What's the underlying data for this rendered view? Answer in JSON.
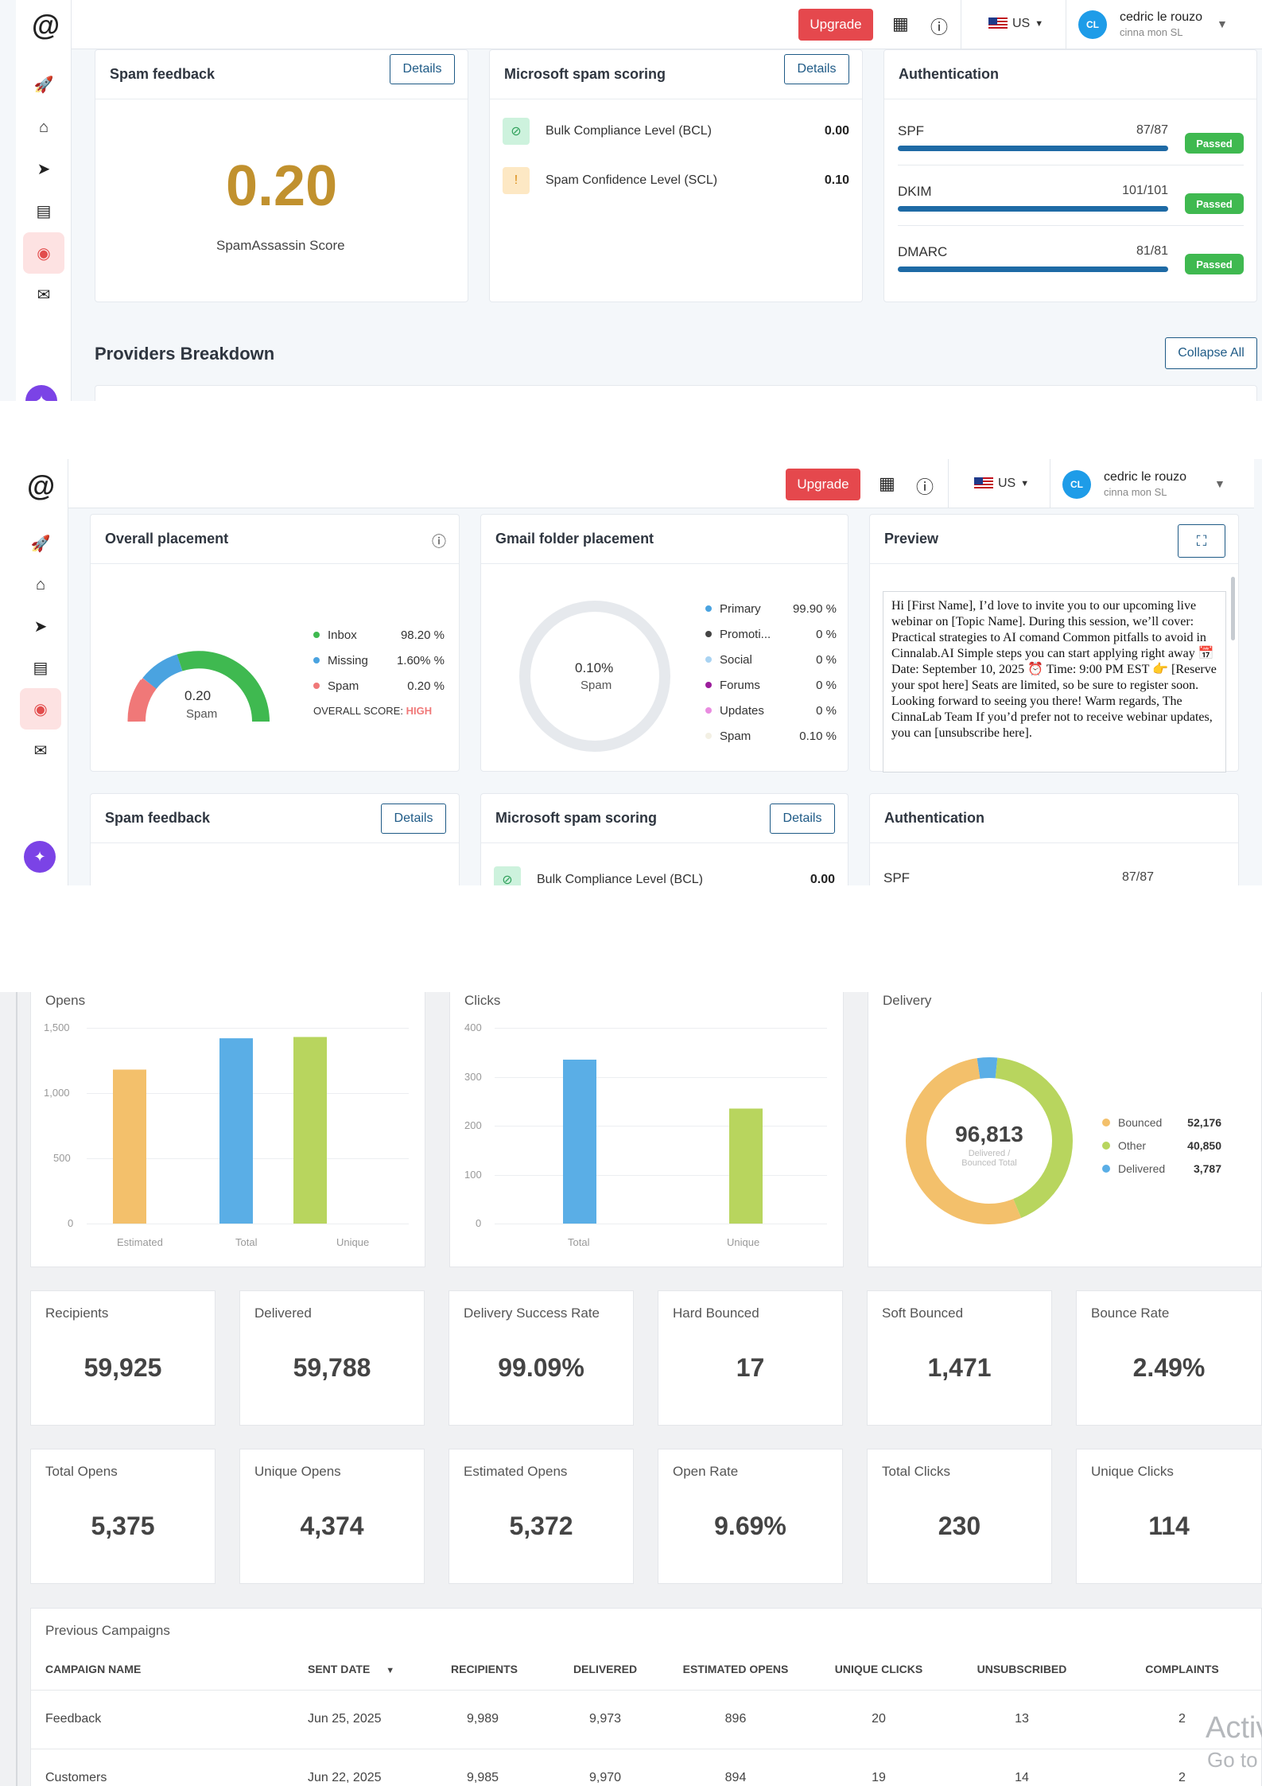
{
  "header": {
    "upgrade_label": "Upgrade",
    "locale": "US",
    "avatar_initials": "CL",
    "user_name": "cedric le rouzo",
    "user_org": "cinna mon SL"
  },
  "spam_feedback": {
    "title": "Spam feedback",
    "details_label": "Details",
    "score": "0.20",
    "score_label": "SpamAssassin Score"
  },
  "ms_scoring": {
    "title": "Microsoft spam scoring",
    "details_label": "Details",
    "rows": [
      {
        "label": "Bulk Compliance Level (BCL)",
        "value": "0.00"
      },
      {
        "label": "Spam Confidence Level (SCL)",
        "value": "0.10"
      }
    ]
  },
  "authentication": {
    "title": "Authentication",
    "rows": [
      {
        "name": "SPF",
        "score": "87/87",
        "status": "Passed",
        "fill": 1.0
      },
      {
        "name": "DKIM",
        "score": "101/101",
        "status": "Passed",
        "fill": 1.0
      },
      {
        "name": "DMARC",
        "score": "81/81",
        "status": "Passed",
        "fill": 1.0
      }
    ]
  },
  "providers": {
    "title": "Providers Breakdown",
    "collapse_label": "Collapse All"
  },
  "overall": {
    "title": "Overall placement",
    "gauge_value": "0.20",
    "gauge_label": "Spam",
    "legend": [
      {
        "name": "Inbox",
        "value": "98.20 %",
        "color": "#3fb950"
      },
      {
        "name": "Missing",
        "value": "1.60% %",
        "color": "#4aa3e0"
      },
      {
        "name": "Spam",
        "value": "0.20 %",
        "color": "#f07878"
      }
    ],
    "score_prefix": "OVERALL SCORE:",
    "score_value": "HIGH"
  },
  "gmail": {
    "title": "Gmail folder placement",
    "center_value": "0.10%",
    "center_label": "Spam",
    "legend": [
      {
        "name": "Primary",
        "value": "99.90 %",
        "color": "#4aa3e0"
      },
      {
        "name": "Promoti...",
        "value": "0 %",
        "color": "#444444"
      },
      {
        "name": "Social",
        "value": "0 %",
        "color": "#a9d3f2"
      },
      {
        "name": "Forums",
        "value": "0 %",
        "color": "#9b1d9b"
      },
      {
        "name": "Updates",
        "value": "0 %",
        "color": "#e98ce0"
      },
      {
        "name": "Spam",
        "value": "0.10 %",
        "color": "#f3f0e4"
      }
    ]
  },
  "preview": {
    "title": "Preview",
    "text": "Hi [First Name], I’d love to invite you to our upcoming live webinar on [Topic Name]. During this session, we’ll cover: Practical strategies to AI comand Common pitfalls to avoid in Cinnalab.AI Simple steps you can start applying right away 📅 Date: September 10, 2025 ⏰ Time: 9:00 PM EST 👉 [Reserve your spot here] Seats are limited, so be sure to register soon. Looking forward to seeing you there! Warm regards, The CinnaLab Team If you’d prefer not to receive webinar updates, you can [unsubscribe here]."
  },
  "dashboard": {
    "opens_chart": {
      "title": "Opens",
      "y_ticks": [
        "1,500",
        "1,000",
        "500",
        "0"
      ],
      "categories": [
        "Estimated",
        "Total",
        "Unique"
      ]
    },
    "clicks_chart": {
      "title": "Clicks",
      "y_ticks": [
        "400",
        "300",
        "200",
        "100",
        "0"
      ],
      "categories": [
        "Total",
        "Unique"
      ]
    },
    "delivery_chart": {
      "title": "Delivery",
      "center_value": "96,813",
      "center_sub1": "Delivered /",
      "center_sub2": "Bounced Total",
      "legend": [
        {
          "name": "Bounced",
          "value": "52,176",
          "color": "#f3c06b"
        },
        {
          "name": "Other",
          "value": "40,850",
          "color": "#b8d55e"
        },
        {
          "name": "Delivered",
          "value": "3,787",
          "color": "#5aaee6"
        }
      ]
    },
    "stats_row1": [
      {
        "label": "Recipients",
        "value": "59,925"
      },
      {
        "label": "Delivered",
        "value": "59,788"
      },
      {
        "label": "Delivery Success Rate",
        "value": "99.09%"
      },
      {
        "label": "Hard Bounced",
        "value": "17"
      },
      {
        "label": "Soft Bounced",
        "value": "1,471"
      },
      {
        "label": "Bounce Rate",
        "value": "2.49%"
      }
    ],
    "stats_row2": [
      {
        "label": "Total Opens",
        "value": "5,375"
      },
      {
        "label": "Unique Opens",
        "value": "4,374"
      },
      {
        "label": "Estimated Opens",
        "value": "5,372"
      },
      {
        "label": "Open Rate",
        "value": "9.69%"
      },
      {
        "label": "Total Clicks",
        "value": "230"
      },
      {
        "label": "Unique Clicks",
        "value": "114"
      }
    ],
    "campaigns": {
      "title": "Previous Campaigns",
      "columns": [
        "CAMPAIGN NAME",
        "SENT DATE",
        "RECIPIENTS",
        "DELIVERED",
        "ESTIMATED OPENS",
        "UNIQUE CLICKS",
        "UNSUBSCRIBED",
        "COMPLAINTS"
      ],
      "rows": [
        [
          "Feedback",
          "Jun 25, 2025",
          "9,989",
          "9,973",
          "896",
          "20",
          "13",
          "2"
        ],
        [
          "Customers",
          "Jun 22, 2025",
          "9,985",
          "9,970",
          "894",
          "19",
          "14",
          "2"
        ]
      ]
    },
    "watermark_line1": "Activ",
    "watermark_line2": "Go to"
  },
  "chart_data": [
    {
      "type": "bar",
      "title": "Opens",
      "categories": [
        "Estimated",
        "Total",
        "Unique"
      ],
      "values": [
        1180,
        1420,
        1430
      ],
      "ylim": [
        0,
        1500
      ],
      "colors": [
        "#f3c06b",
        "#5aaee6",
        "#b8d55e"
      ]
    },
    {
      "type": "bar",
      "title": "Clicks",
      "categories": [
        "Total",
        "Unique"
      ],
      "values": [
        335,
        235
      ],
      "ylim": [
        0,
        400
      ],
      "colors": [
        "#5aaee6",
        "#b8d55e"
      ]
    },
    {
      "type": "pie",
      "title": "Delivery",
      "labels": [
        "Bounced",
        "Other",
        "Delivered"
      ],
      "values": [
        52176,
        40850,
        3787
      ],
      "colors": [
        "#f3c06b",
        "#b8d55e",
        "#5aaee6"
      ]
    }
  ]
}
